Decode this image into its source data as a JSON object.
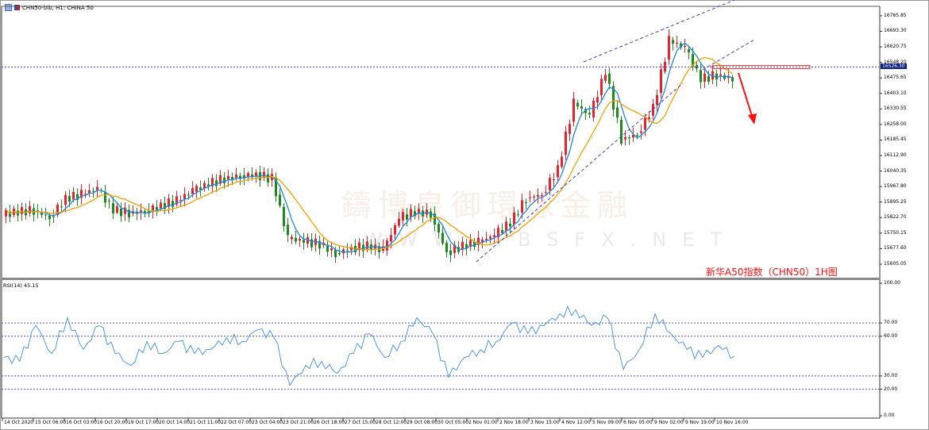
{
  "window": {
    "title": "CHN50-bib, H1:  CHINA 50"
  },
  "annotation": "新华A50指数（CHN50）1H图",
  "watermark": {
    "line1": "鑄博皇御環球金融",
    "line2": "WWW.HBSFX.NET"
  },
  "colors": {
    "bull": "#e8232d",
    "bear": "#1e8a1e",
    "ma_fast": "#1e88e5",
    "ma_slow": "#f5a000",
    "rsi": "#3d8ee8",
    "level_line": "#5050c0",
    "annotation": "#ff1010"
  },
  "chart_data": [
    {
      "type": "candlestick",
      "symbol": "CHN50-bib",
      "timeframe": "H1",
      "current_price": "16526.30",
      "ylim": [
        15542,
        16810
      ],
      "y_ticks": [
        "16765.85",
        "16693.30",
        "16620.75",
        "16548.20",
        "16475.65",
        "16403.10",
        "16330.55",
        "16258.00",
        "16185.45",
        "16112.90",
        "16040.35",
        "15967.80",
        "15895.25",
        "15822.70",
        "15750.15",
        "15677.60",
        "15605.05"
      ],
      "x_ticks": [
        "14 Oct 2020",
        "15 Oct 06:00",
        "16 Oct 03:00",
        "16 Oct 20:00",
        "19 Oct 17:00",
        "20 Oct 14:00",
        "21 Oct 11:00",
        "22 Oct 07:00",
        "23 Oct 04:00",
        "23 Oct 21:00",
        "26 Oct 18:00",
        "27 Oct 15:00",
        "28 Oct 12:00",
        "29 Oct 08:00",
        "30 Oct 05:00",
        "2 Nov 01:00",
        "2 Nov 18:00",
        "3 Nov 15:00",
        "4 Nov 12:00",
        "5 Nov 09:00",
        "6 Nov 05:00",
        "9 Nov 02:00",
        "9 Nov 19:00",
        "10 Nov 16:00"
      ],
      "closes": [
        15838,
        15850,
        15857,
        15820,
        15913,
        15931,
        15960,
        15857,
        15845,
        15850,
        15880,
        15900,
        15950,
        15980,
        16005,
        16015,
        16024,
        16005,
        15727,
        15712,
        15700,
        15653,
        15680,
        15690,
        15672,
        15820,
        15850,
        15840,
        15660,
        15690,
        15710,
        15740,
        15800,
        15913,
        15930,
        16050,
        16358,
        16300,
        16506,
        16190,
        16210,
        16339,
        16650,
        16617,
        16469,
        16490,
        16469
      ],
      "indicators": [
        "moving average (fast)",
        "moving average (slow)"
      ],
      "resistance_level": "16526.30",
      "projection": "down arrow"
    },
    {
      "type": "line",
      "label": "RSI(14) 45.15",
      "ylim": [
        0,
        100
      ],
      "y_ticks": [
        "100.00",
        "70.00",
        "60.00",
        "30.00",
        "20.00",
        "0.00"
      ],
      "levels": [
        70,
        60,
        30,
        20
      ],
      "values": [
        44,
        41,
        68,
        47,
        74,
        50,
        68,
        47,
        38,
        56,
        47,
        56,
        47,
        50,
        59,
        56,
        65,
        59,
        23,
        38,
        41,
        32,
        47,
        62,
        44,
        56,
        74,
        62,
        29,
        44,
        50,
        56,
        70,
        62,
        68,
        77,
        80,
        68,
        74,
        35,
        50,
        77,
        62,
        50,
        44,
        53,
        45
      ]
    }
  ]
}
